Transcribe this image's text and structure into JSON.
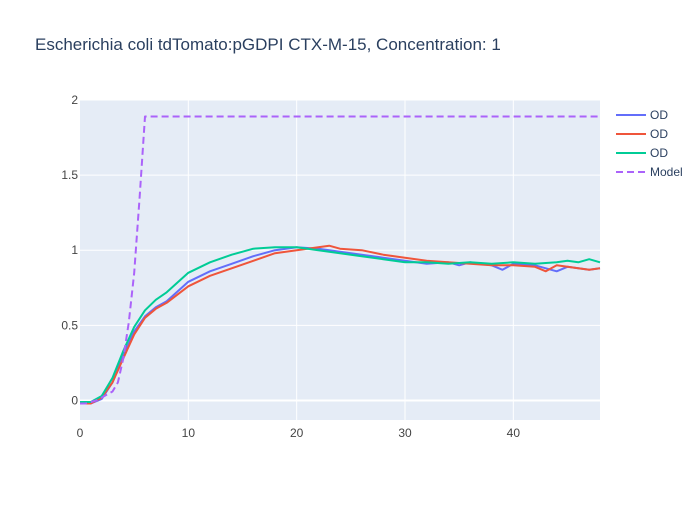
{
  "chart_data": {
    "type": "line",
    "title": "Escherichia coli  tdTomato:pGDPI CTX-M-15, Concentration: 1",
    "xlabel": "",
    "ylabel": "",
    "xlim": [
      0,
      48
    ],
    "ylim": [
      -0.13,
      2
    ],
    "x_ticks": [
      0,
      10,
      20,
      30,
      40
    ],
    "y_ticks": [
      0,
      0.5,
      1,
      1.5,
      2
    ],
    "x_tick_labels": [
      "0",
      "10",
      "20",
      "30",
      "40"
    ],
    "y_tick_labels": [
      "0",
      "0.5",
      "1",
      "1.5",
      "2"
    ],
    "grid": true,
    "legend_position": "top-right",
    "plot_background": "#e5ecf6",
    "series": [
      {
        "name": "OD",
        "color": "#636efa",
        "dash": "solid",
        "x": [
          0,
          1,
          2,
          3,
          4,
          5,
          6,
          7,
          8,
          10,
          12,
          14,
          16,
          18,
          20,
          22,
          24,
          26,
          28,
          30,
          32,
          34,
          35,
          36,
          37,
          38,
          39,
          40,
          42,
          43,
          44,
          45,
          46,
          47,
          48
        ],
        "y": [
          -0.02,
          -0.02,
          0.01,
          0.12,
          0.3,
          0.46,
          0.56,
          0.62,
          0.66,
          0.79,
          0.86,
          0.91,
          0.96,
          1.0,
          1.02,
          1.01,
          0.99,
          0.97,
          0.95,
          0.93,
          0.91,
          0.92,
          0.9,
          0.92,
          0.91,
          0.9,
          0.87,
          0.91,
          0.9,
          0.88,
          0.86,
          0.89,
          0.88,
          0.87,
          0.88
        ]
      },
      {
        "name": "OD",
        "color": "#ef553b",
        "dash": "solid",
        "x": [
          0,
          1,
          2,
          3,
          4,
          5,
          6,
          7,
          8,
          10,
          12,
          14,
          16,
          18,
          20,
          22,
          23,
          24,
          26,
          28,
          30,
          32,
          34,
          36,
          38,
          40,
          42,
          43,
          44,
          46,
          47,
          48
        ],
        "y": [
          -0.02,
          -0.02,
          0.02,
          0.12,
          0.28,
          0.44,
          0.55,
          0.61,
          0.65,
          0.76,
          0.83,
          0.88,
          0.93,
          0.98,
          1.0,
          1.02,
          1.03,
          1.01,
          1.0,
          0.97,
          0.95,
          0.93,
          0.92,
          0.91,
          0.9,
          0.9,
          0.89,
          0.86,
          0.9,
          0.88,
          0.87,
          0.88
        ]
      },
      {
        "name": "OD",
        "color": "#00cc96",
        "dash": "solid",
        "x": [
          0,
          1,
          2,
          3,
          4,
          5,
          6,
          7,
          8,
          10,
          12,
          14,
          16,
          18,
          20,
          22,
          24,
          26,
          28,
          30,
          32,
          34,
          36,
          38,
          40,
          42,
          44,
          45,
          46,
          47,
          48
        ],
        "y": [
          -0.01,
          -0.01,
          0.03,
          0.15,
          0.33,
          0.49,
          0.6,
          0.67,
          0.72,
          0.85,
          0.92,
          0.97,
          1.01,
          1.02,
          1.02,
          1.0,
          0.98,
          0.96,
          0.94,
          0.92,
          0.92,
          0.91,
          0.92,
          0.91,
          0.92,
          0.91,
          0.92,
          0.93,
          0.92,
          0.94,
          0.92
        ]
      },
      {
        "name": "Model",
        "color": "#ab63fa",
        "dash": "dash",
        "x": [
          0,
          0.5,
          1,
          1.5,
          2,
          2.5,
          3,
          3.5,
          4,
          4.5,
          5,
          5.5,
          6,
          48
        ],
        "y": [
          -0.02,
          -0.02,
          -0.01,
          0.0,
          0.02,
          0.04,
          0.06,
          0.12,
          0.28,
          0.52,
          0.85,
          1.35,
          1.89,
          1.89
        ]
      }
    ]
  }
}
